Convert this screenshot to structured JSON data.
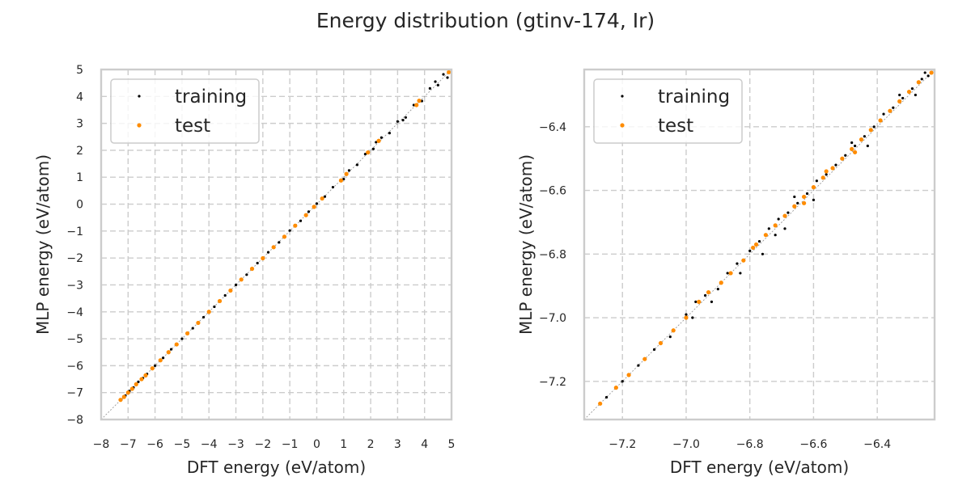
{
  "figure": {
    "title": "Energy distribution (gtinv-174, Ir)"
  },
  "chart_data": [
    {
      "type": "scatter",
      "title": "",
      "xlabel": "DFT energy (eV/atom)",
      "ylabel": "MLP energy (eV/atom)",
      "xlim": [
        -8,
        5
      ],
      "ylim": [
        -8,
        5
      ],
      "xticks": [
        -8,
        -7,
        -6,
        -5,
        -4,
        -3,
        -2,
        -1,
        0,
        1,
        2,
        3,
        4,
        5
      ],
      "yticks": [
        -8,
        -7,
        -6,
        -5,
        -4,
        -3,
        -2,
        -1,
        0,
        1,
        2,
        3,
        4,
        5
      ],
      "xtick_labels": [
        "−8",
        "−7",
        "−6",
        "−5",
        "−4",
        "−3",
        "−2",
        "−1",
        "0",
        "1",
        "2",
        "3",
        "4",
        "5"
      ],
      "ytick_labels": [
        "−8",
        "−7",
        "−6",
        "−5",
        "−4",
        "−3",
        "−2",
        "−1",
        "0",
        "1",
        "2",
        "3",
        "4",
        "5"
      ],
      "grid": true,
      "legend": "top-left",
      "diagonal_reference": true,
      "series": [
        {
          "name": "training",
          "color": "#000000",
          "points": [
            [
              -7.25,
              -7.26
            ],
            [
              -7.1,
              -7.11
            ],
            [
              -6.95,
              -6.94
            ],
            [
              -6.8,
              -6.81
            ],
            [
              -6.62,
              -6.6
            ],
            [
              -6.45,
              -6.46
            ],
            [
              -6.3,
              -6.31
            ],
            [
              -6.0,
              -6.0
            ],
            [
              -5.7,
              -5.71
            ],
            [
              -5.4,
              -5.39
            ],
            [
              -5.0,
              -5.0
            ],
            [
              -4.6,
              -4.61
            ],
            [
              -4.2,
              -4.2
            ],
            [
              -3.8,
              -3.81
            ],
            [
              -3.4,
              -3.39
            ],
            [
              -3.0,
              -3.0
            ],
            [
              -2.6,
              -2.62
            ],
            [
              -2.2,
              -2.19
            ],
            [
              -1.8,
              -1.79
            ],
            [
              -1.4,
              -1.42
            ],
            [
              -1.0,
              -0.98
            ],
            [
              -0.6,
              -0.62
            ],
            [
              -0.3,
              -0.28
            ],
            [
              0.0,
              0.02
            ],
            [
              0.3,
              0.28
            ],
            [
              0.6,
              0.63
            ],
            [
              0.9,
              0.87
            ],
            [
              1.2,
              1.25
            ],
            [
              1.5,
              1.46
            ],
            [
              1.8,
              1.86
            ],
            [
              2.1,
              2.05
            ],
            [
              2.4,
              2.47
            ],
            [
              2.7,
              2.64
            ],
            [
              3.0,
              3.07
            ],
            [
              3.3,
              3.22
            ],
            [
              3.6,
              3.68
            ],
            [
              3.9,
              3.83
            ],
            [
              4.2,
              4.3
            ],
            [
              4.5,
              4.42
            ],
            [
              4.7,
              4.82
            ],
            [
              4.85,
              4.7
            ],
            [
              4.4,
              4.55
            ],
            [
              3.2,
              3.12
            ],
            [
              2.2,
              2.3
            ],
            [
              1.0,
              0.93
            ]
          ]
        },
        {
          "name": "test",
          "color": "#ff8c00",
          "points": [
            [
              -7.28,
              -7.27
            ],
            [
              -7.15,
              -7.16
            ],
            [
              -7.0,
              -7.0
            ],
            [
              -6.85,
              -6.86
            ],
            [
              -6.7,
              -6.69
            ],
            [
              -6.5,
              -6.5
            ],
            [
              -6.35,
              -6.36
            ],
            [
              -6.1,
              -6.1
            ],
            [
              -5.8,
              -5.8
            ],
            [
              -5.5,
              -5.5
            ],
            [
              -5.2,
              -5.21
            ],
            [
              -4.8,
              -4.8
            ],
            [
              -4.4,
              -4.41
            ],
            [
              -4.0,
              -4.0
            ],
            [
              -3.6,
              -3.6
            ],
            [
              -3.2,
              -3.21
            ],
            [
              -2.8,
              -2.8
            ],
            [
              -2.4,
              -2.4
            ],
            [
              -2.0,
              -2.01
            ],
            [
              -1.6,
              -1.6
            ],
            [
              -1.2,
              -1.21
            ],
            [
              -0.8,
              -0.8
            ],
            [
              -0.4,
              -0.41
            ],
            [
              -0.1,
              -0.1
            ],
            [
              0.2,
              0.21
            ],
            [
              0.9,
              0.88
            ],
            [
              1.1,
              1.12
            ],
            [
              1.9,
              1.92
            ],
            [
              2.3,
              2.35
            ],
            [
              3.7,
              3.68
            ],
            [
              3.8,
              3.84
            ],
            [
              4.9,
              4.9
            ]
          ]
        }
      ]
    },
    {
      "type": "scatter",
      "title": "",
      "xlabel": "DFT energy (eV/atom)",
      "ylabel": "MLP energy (eV/atom)",
      "xlim": [
        -7.32,
        -6.22
      ],
      "ylim": [
        -7.32,
        -6.22
      ],
      "xticks": [
        -7.2,
        -7.0,
        -6.8,
        -6.6,
        -6.4
      ],
      "yticks": [
        -7.2,
        -7.0,
        -6.8,
        -6.6,
        -6.4
      ],
      "xtick_labels": [
        "−7.2",
        "−7.0",
        "−6.8",
        "−6.6",
        "−6.4"
      ],
      "ytick_labels": [
        "−7.2",
        "−7.0",
        "−6.8",
        "−6.6",
        "−6.4"
      ],
      "grid": true,
      "legend": "top-left",
      "diagonal_reference": true,
      "series": [
        {
          "name": "training",
          "color": "#000000",
          "points": [
            [
              -7.25,
              -7.25
            ],
            [
              -7.2,
              -7.2
            ],
            [
              -7.15,
              -7.15
            ],
            [
              -7.1,
              -7.1
            ],
            [
              -7.05,
              -7.06
            ],
            [
              -7.0,
              -6.99
            ],
            [
              -6.97,
              -6.95
            ],
            [
              -6.94,
              -6.93
            ],
            [
              -6.9,
              -6.91
            ],
            [
              -6.87,
              -6.86
            ],
            [
              -6.84,
              -6.83
            ],
            [
              -6.8,
              -6.79
            ],
            [
              -6.77,
              -6.76
            ],
            [
              -6.74,
              -6.72
            ],
            [
              -6.71,
              -6.69
            ],
            [
              -6.68,
              -6.67
            ],
            [
              -6.65,
              -6.64
            ],
            [
              -6.62,
              -6.61
            ],
            [
              -6.59,
              -6.57
            ],
            [
              -6.56,
              -6.55
            ],
            [
              -6.53,
              -6.52
            ],
            [
              -6.5,
              -6.49
            ],
            [
              -6.47,
              -6.46
            ],
            [
              -6.44,
              -6.43
            ],
            [
              -6.41,
              -6.4
            ],
            [
              -6.38,
              -6.36
            ],
            [
              -6.35,
              -6.34
            ],
            [
              -6.32,
              -6.31
            ],
            [
              -6.29,
              -6.28
            ],
            [
              -6.26,
              -6.25
            ],
            [
              -6.24,
              -6.24
            ],
            [
              -6.76,
              -6.8
            ],
            [
              -6.72,
              -6.74
            ],
            [
              -6.66,
              -6.62
            ],
            [
              -6.6,
              -6.63
            ],
            [
              -6.48,
              -6.45
            ],
            [
              -6.43,
              -6.46
            ],
            [
              -6.33,
              -6.3
            ],
            [
              -6.28,
              -6.3
            ],
            [
              -6.25,
              -6.23
            ],
            [
              -6.92,
              -6.95
            ],
            [
              -6.98,
              -7.0
            ],
            [
              -6.83,
              -6.86
            ],
            [
              -6.69,
              -6.72
            ]
          ]
        },
        {
          "name": "test",
          "color": "#ff8c00",
          "points": [
            [
              -7.27,
              -7.27
            ],
            [
              -7.22,
              -7.22
            ],
            [
              -7.18,
              -7.18
            ],
            [
              -7.13,
              -7.13
            ],
            [
              -7.08,
              -7.08
            ],
            [
              -7.04,
              -7.04
            ],
            [
              -7.0,
              -7.0
            ],
            [
              -6.96,
              -6.95
            ],
            [
              -6.93,
              -6.92
            ],
            [
              -6.89,
              -6.89
            ],
            [
              -6.86,
              -6.86
            ],
            [
              -6.82,
              -6.82
            ],
            [
              -6.79,
              -6.78
            ],
            [
              -6.75,
              -6.74
            ],
            [
              -6.72,
              -6.71
            ],
            [
              -6.69,
              -6.68
            ],
            [
              -6.66,
              -6.65
            ],
            [
              -6.63,
              -6.62
            ],
            [
              -6.6,
              -6.59
            ],
            [
              -6.57,
              -6.56
            ],
            [
              -6.54,
              -6.53
            ],
            [
              -6.51,
              -6.5
            ],
            [
              -6.48,
              -6.47
            ],
            [
              -6.45,
              -6.44
            ],
            [
              -6.42,
              -6.41
            ],
            [
              -6.39,
              -6.38
            ],
            [
              -6.36,
              -6.35
            ],
            [
              -6.33,
              -6.32
            ],
            [
              -6.3,
              -6.29
            ],
            [
              -6.27,
              -6.26
            ],
            [
              -6.23,
              -6.23
            ],
            [
              -6.78,
              -6.77
            ],
            [
              -6.63,
              -6.64
            ],
            [
              -6.56,
              -6.54
            ],
            [
              -6.47,
              -6.48
            ]
          ]
        }
      ]
    }
  ]
}
